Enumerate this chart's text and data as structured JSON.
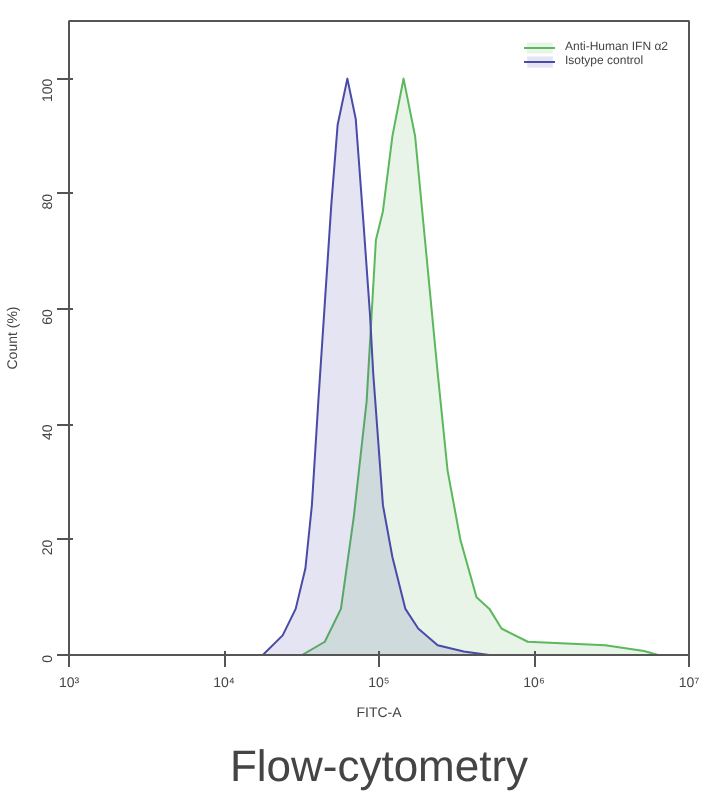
{
  "chart_data": {
    "type": "area",
    "title": "Flow-cytometry",
    "xlabel": "FITC-A",
    "ylabel": "Count (%)",
    "log": "x",
    "xlim": [
      1000,
      10000000
    ],
    "ylim": [
      0,
      110
    ],
    "xticks": [
      {
        "value": 1000,
        "label": "10³"
      },
      {
        "value": 10000,
        "label": "10⁴"
      },
      {
        "value": 100000,
        "label": "10⁵"
      },
      {
        "value": 1000000,
        "label": "10⁶"
      },
      {
        "value": 10000000,
        "label": "10⁷"
      }
    ],
    "yticks": [
      0,
      20,
      40,
      60,
      80,
      100
    ],
    "grid": false,
    "legend": "top right",
    "series": [
      {
        "name": "Anti-Human IFN α2",
        "color": "#5cb85c",
        "x": [
          31900,
          44700,
          56800,
          68800,
          83200,
          95500,
          106000,
          122000,
          144000,
          171000,
          198000,
          239000,
          277000,
          335000,
          426000,
          516000,
          617000,
          912000,
          2880000,
          5130000,
          6310000
        ],
        "values": [
          0,
          2.3,
          8,
          24,
          44,
          72,
          77,
          90,
          100,
          90,
          72,
          49,
          32,
          20,
          10,
          8,
          4.6,
          2.3,
          1.7,
          0.7,
          0
        ]
      },
      {
        "name": "Isotype control",
        "color": "#4a4aa8",
        "x": [
          17800,
          23900,
          29000,
          33500,
          36900,
          40600,
          44700,
          49200,
          54100,
          62500,
          70800,
          79400,
          87500,
          91700,
          106000,
          122000,
          148000,
          179000,
          239000,
          352000,
          513000
        ],
        "values": [
          0,
          3.4,
          8,
          15,
          26,
          44,
          61,
          78,
          92,
          100,
          93,
          75,
          59,
          49,
          26,
          17,
          8,
          4.6,
          1.7,
          0.6,
          0
        ]
      }
    ]
  }
}
